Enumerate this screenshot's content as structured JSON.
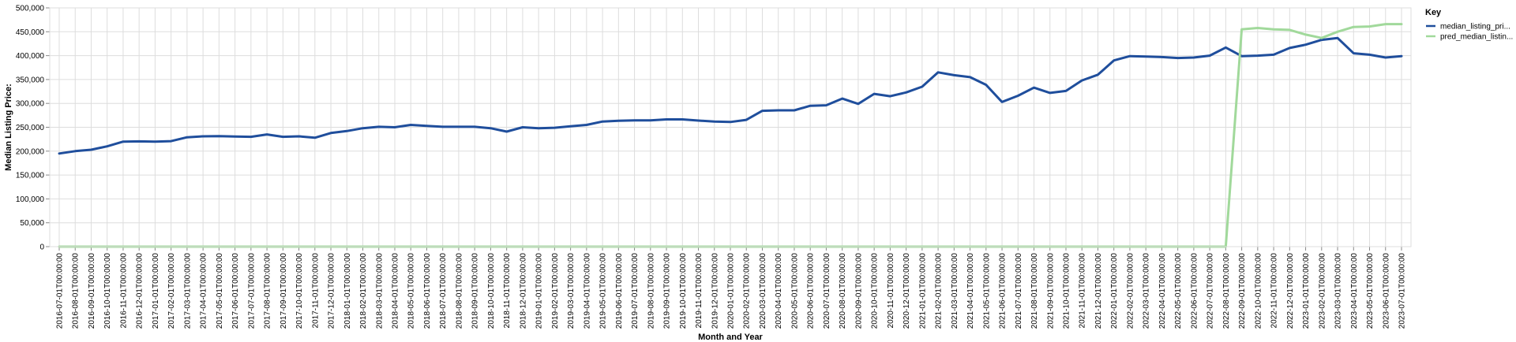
{
  "chart_data": {
    "type": "line",
    "xlabel": "Month and Year",
    "ylabel": "Median Listing Price:",
    "ylim": [
      0,
      500000
    ],
    "yticks": [
      "0",
      "50,000",
      "100,000",
      "150,000",
      "200,000",
      "250,000",
      "300,000",
      "350,000",
      "400,000",
      "450,000",
      "500,000"
    ],
    "grid": true,
    "legend": {
      "title": "Key",
      "position": "right"
    },
    "x": [
      "2016-07-01T00:00:00",
      "2016-08-01T00:00:00",
      "2016-09-01T00:00:00",
      "2016-10-01T00:00:00",
      "2016-11-01T00:00:00",
      "2016-12-01T00:00:00",
      "2017-01-01T00:00:00",
      "2017-02-01T00:00:00",
      "2017-03-01T00:00:00",
      "2017-04-01T00:00:00",
      "2017-05-01T00:00:00",
      "2017-06-01T00:00:00",
      "2017-07-01T00:00:00",
      "2017-08-01T00:00:00",
      "2017-09-01T00:00:00",
      "2017-10-01T00:00:00",
      "2017-11-01T00:00:00",
      "2017-12-01T00:00:00",
      "2018-01-01T00:00:00",
      "2018-02-01T00:00:00",
      "2018-03-01T00:00:00",
      "2018-04-01T00:00:00",
      "2018-05-01T00:00:00",
      "2018-06-01T00:00:00",
      "2018-07-01T00:00:00",
      "2018-08-01T00:00:00",
      "2018-09-01T00:00:00",
      "2018-10-01T00:00:00",
      "2018-11-01T00:00:00",
      "2018-12-01T00:00:00",
      "2019-01-01T00:00:00",
      "2019-02-01T00:00:00",
      "2019-03-01T00:00:00",
      "2019-04-01T00:00:00",
      "2019-05-01T00:00:00",
      "2019-06-01T00:00:00",
      "2019-07-01T00:00:00",
      "2019-08-01T00:00:00",
      "2019-09-01T00:00:00",
      "2019-10-01T00:00:00",
      "2019-11-01T00:00:00",
      "2019-12-01T00:00:00",
      "2020-01-01T00:00:00",
      "2020-02-01T00:00:00",
      "2020-03-01T00:00:00",
      "2020-04-01T00:00:00",
      "2020-05-01T00:00:00",
      "2020-06-01T00:00:00",
      "2020-07-01T00:00:00",
      "2020-08-01T00:00:00",
      "2020-09-01T00:00:00",
      "2020-10-01T00:00:00",
      "2020-11-01T00:00:00",
      "2020-12-01T00:00:00",
      "2021-01-01T00:00:00",
      "2021-02-01T00:00:00",
      "2021-03-01T00:00:00",
      "2021-04-01T00:00:00",
      "2021-05-01T00:00:00",
      "2021-06-01T00:00:00",
      "2021-07-01T00:00:00",
      "2021-08-01T00:00:00",
      "2021-09-01T00:00:00",
      "2021-10-01T00:00:00",
      "2021-11-01T00:00:00",
      "2021-12-01T00:00:00",
      "2022-01-01T00:00:00",
      "2022-02-01T00:00:00",
      "2022-03-01T00:00:00",
      "2022-04-01T00:00:00",
      "2022-05-01T00:00:00",
      "2022-06-01T00:00:00",
      "2022-07-01T00:00:00",
      "2022-08-01T00:00:00",
      "2022-09-01T00:00:00",
      "2022-10-01T00:00:00",
      "2022-11-01T00:00:00",
      "2022-12-01T00:00:00",
      "2023-01-01T00:00:00",
      "2023-02-01T00:00:00",
      "2023-03-01T00:00:00",
      "2023-04-01T00:00:00",
      "2023-05-01T00:00:00",
      "2023-06-01T00:00:00",
      "2023-07-01T00:00:00"
    ],
    "series": [
      {
        "name": "median_listing_pri...",
        "color": "#1f4e9c",
        "values": [
          195000,
          200000,
          203000,
          210000,
          220000,
          220500,
          220000,
          221000,
          229000,
          231000,
          231500,
          230500,
          230000,
          235000,
          230000,
          231000,
          228000,
          238000,
          242000,
          248000,
          251000,
          250000,
          255000,
          253000,
          251000,
          251000,
          251000,
          248000,
          241000,
          250000,
          248000,
          249000,
          252000,
          255000,
          262000,
          263500,
          264500,
          264500,
          266500,
          266500,
          264000,
          262000,
          261000,
          265500,
          284500,
          285500,
          285500,
          295000,
          296000,
          310000,
          299000,
          320000,
          315000,
          323000,
          335000,
          365000,
          359000,
          355000,
          339000,
          303000,
          316000,
          333000,
          322000,
          326000,
          348000,
          360000,
          390000,
          399000,
          398000,
          397000,
          395000,
          396000,
          400000,
          417000,
          399000,
          400000,
          402000,
          416000,
          423000,
          433000,
          437000,
          405000,
          402000,
          396000,
          399000
        ]
      },
      {
        "name": "pred_median_listin...",
        "color": "#a1d99b",
        "values": [
          0,
          0,
          0,
          0,
          0,
          0,
          0,
          0,
          0,
          0,
          0,
          0,
          0,
          0,
          0,
          0,
          0,
          0,
          0,
          0,
          0,
          0,
          0,
          0,
          0,
          0,
          0,
          0,
          0,
          0,
          0,
          0,
          0,
          0,
          0,
          0,
          0,
          0,
          0,
          0,
          0,
          0,
          0,
          0,
          0,
          0,
          0,
          0,
          0,
          0,
          0,
          0,
          0,
          0,
          0,
          0,
          0,
          0,
          0,
          0,
          0,
          0,
          0,
          0,
          0,
          0,
          0,
          0,
          0,
          0,
          0,
          0,
          0,
          0,
          455000,
          458000,
          455000,
          454000,
          444000,
          437000,
          450000,
          460000,
          461000,
          466000,
          466000
        ]
      }
    ]
  }
}
